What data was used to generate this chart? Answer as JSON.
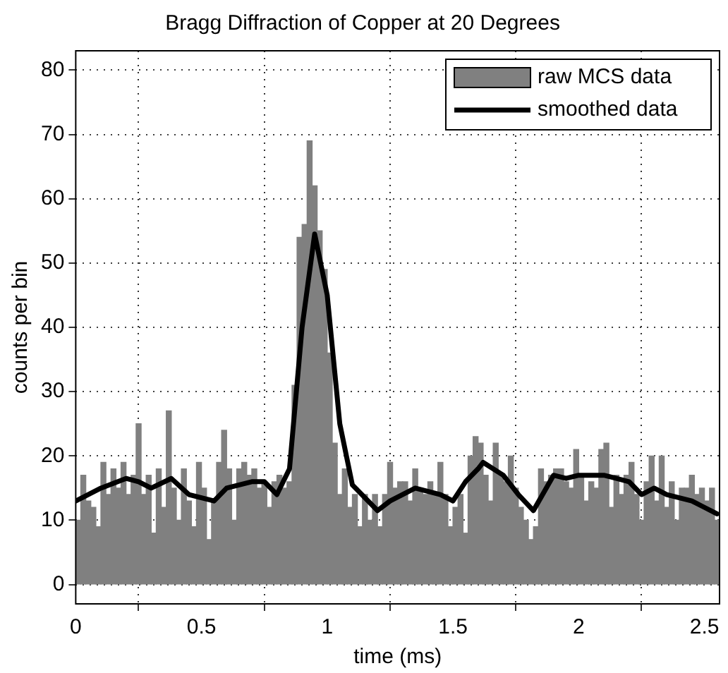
{
  "chart_data": {
    "type": "histogram",
    "title": "Bragg Diffraction of Copper at 20 Degrees",
    "xlabel": "time (ms)",
    "ylabel": "counts per bin",
    "bins": [
      0,
      0.02,
      0.04,
      0.06,
      0.08,
      0.1,
      0.12,
      0.14,
      0.16,
      0.18,
      0.2,
      0.22,
      0.24,
      0.26,
      0.28,
      0.3,
      0.32,
      0.34,
      0.36,
      0.38,
      0.4,
      0.42,
      0.44,
      0.46,
      0.48,
      0.5,
      0.52,
      0.54,
      0.56,
      0.58,
      0.6,
      0.62,
      0.64,
      0.66,
      0.68,
      0.7,
      0.72,
      0.74,
      0.76,
      0.78,
      0.8,
      0.82,
      0.84,
      0.86,
      0.88,
      0.9,
      0.92,
      0.94,
      0.96,
      0.98,
      1,
      1.02,
      1.04,
      1.06,
      1.08,
      1.1,
      1.12,
      1.14,
      1.16,
      1.18,
      1.2,
      1.22,
      1.24,
      1.26,
      1.28,
      1.3,
      1.32,
      1.34,
      1.36,
      1.38,
      1.4,
      1.42,
      1.44,
      1.46,
      1.48,
      1.5,
      1.52,
      1.54,
      1.56,
      1.58,
      1.6,
      1.62,
      1.64,
      1.66,
      1.68,
      1.7,
      1.72,
      1.74,
      1.76,
      1.78,
      1.8,
      1.82,
      1.84,
      1.86,
      1.88,
      1.9,
      1.92,
      1.94,
      1.96,
      1.98,
      2,
      2.02,
      2.04,
      2.06,
      2.08,
      2.1,
      2.12,
      2.14,
      2.16,
      2.18,
      2.2,
      2.22,
      2.24,
      2.26,
      2.28,
      2.3,
      2.32,
      2.34,
      2.36,
      2.38,
      2.4,
      2.42,
      2.44,
      2.46,
      2.48,
      2.5,
      2.52,
      2.54,
      2.56
    ],
    "series": [
      {
        "name": "raw MCS data",
        "color": "#808080",
        "values": [
          10,
          17,
          13,
          12,
          9,
          19,
          14,
          18,
          15,
          19,
          14,
          17,
          25,
          14,
          17,
          8,
          18,
          12,
          27,
          15,
          10,
          18,
          13,
          9,
          19,
          15,
          7,
          13,
          19,
          24,
          18,
          10,
          18,
          19,
          17,
          18,
          15,
          16,
          12,
          16,
          17,
          15,
          16,
          31,
          54,
          56,
          69,
          62,
          55,
          49,
          36,
          22,
          14,
          18,
          12,
          14,
          9,
          14,
          10,
          14,
          9,
          14,
          19,
          15,
          16,
          16,
          13,
          18,
          15,
          14,
          16,
          14,
          19,
          14,
          9,
          12,
          14,
          8,
          20,
          23,
          22,
          17,
          13,
          22,
          17,
          16,
          20,
          15,
          12,
          10,
          7,
          9,
          18,
          16,
          17,
          18,
          18,
          16,
          15,
          21,
          17,
          13,
          16,
          15,
          21,
          22,
          12,
          17,
          14,
          17,
          19,
          14,
          10,
          16,
          20,
          13,
          20,
          12,
          16,
          10,
          15,
          15,
          17,
          14,
          15,
          13,
          15,
          10
        ]
      },
      {
        "type": "line",
        "name": "smoothed data",
        "color": "#000000",
        "marker": "none",
        "x": [
          0,
          0.1,
          0.2,
          0.25,
          0.3,
          0.38,
          0.45,
          0.55,
          0.6,
          0.7,
          0.75,
          0.8,
          0.85,
          0.9,
          0.95,
          1,
          1.05,
          1.1,
          1.2,
          1.25,
          1.35,
          1.45,
          1.5,
          1.55,
          1.6,
          1.62,
          1.7,
          1.76,
          1.82,
          1.9,
          1.95,
          2,
          2.1,
          2.15,
          2.2,
          2.25,
          2.3,
          2.35,
          2.45,
          2.5,
          2.55
        ],
        "values": [
          13,
          15,
          16.5,
          16,
          15,
          16.5,
          14,
          13,
          15,
          16,
          16,
          14,
          18,
          40,
          54.5,
          45,
          25,
          15.5,
          11.5,
          13,
          15,
          14,
          13,
          16,
          18,
          19,
          17,
          14,
          11.5,
          17,
          16.5,
          17,
          17,
          16.5,
          16,
          14,
          15,
          14,
          13,
          12,
          11
        ]
      }
    ],
    "xlim": [
      0,
      2.56
    ],
    "ylim": [
      -3,
      83
    ],
    "xticks": [
      0,
      0.5,
      1,
      1.5,
      2,
      2.5
    ],
    "yticks": [
      0,
      10,
      20,
      30,
      40,
      50,
      60,
      70,
      80
    ],
    "grid": true,
    "legend": "top right"
  }
}
